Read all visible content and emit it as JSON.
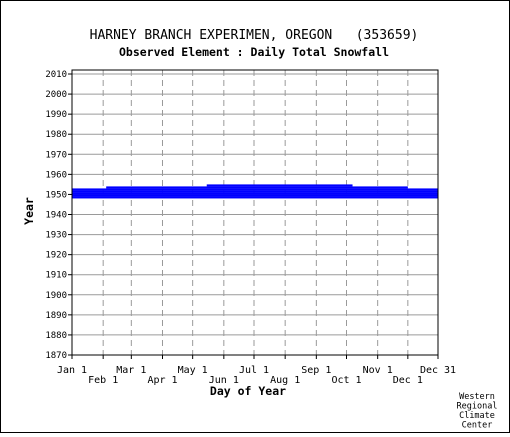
{
  "chart_data": {
    "type": "heatmap",
    "title": "HARNEY BRANCH EXPERIMEN, OREGON   (353659)",
    "subtitle": "Observed Element : Daily Total Snowfall",
    "xlabel": "Day of Year",
    "ylabel": "Year",
    "ylim": [
      1870,
      2012
    ],
    "xlim": [
      1,
      365
    ],
    "y_ticks": [
      "1870",
      "1880",
      "1890",
      "1900",
      "1910",
      "1920",
      "1930",
      "1940",
      "1950",
      "1960",
      "1970",
      "1980",
      "1990",
      "2000",
      "2010"
    ],
    "x_ticks_top_row": [
      {
        "label": "Jan 1",
        "day": 1
      },
      {
        "label": "Mar 1",
        "day": 60
      },
      {
        "label": "May 1",
        "day": 121
      },
      {
        "label": "Jul 1",
        "day": 182
      },
      {
        "label": "Sep 1",
        "day": 244
      },
      {
        "label": "Nov 1",
        "day": 305
      },
      {
        "label": "Dec 31",
        "day": 365
      }
    ],
    "x_ticks_bottom_row": [
      {
        "label": "Feb 1",
        "day": 32
      },
      {
        "label": "Apr 1",
        "day": 91
      },
      {
        "label": "Jun 1",
        "day": 152
      },
      {
        "label": "Aug 1",
        "day": 213
      },
      {
        "label": "Oct 1",
        "day": 274
      },
      {
        "label": "Dec 1",
        "day": 335
      }
    ],
    "grid": true,
    "color": "#0000ff",
    "records": [
      {
        "year": 1948,
        "start_day": 1,
        "end_day": 365
      },
      {
        "year": 1949,
        "start_day": 1,
        "end_day": 365
      },
      {
        "year": 1950,
        "start_day": 1,
        "end_day": 365
      },
      {
        "year": 1951,
        "start_day": 1,
        "end_day": 365
      },
      {
        "year": 1952,
        "start_day": 1,
        "end_day": 365
      },
      {
        "year": 1953,
        "start_day": 35,
        "end_day": 335
      },
      {
        "year": 1954,
        "start_day": 135,
        "end_day": 280
      }
    ]
  },
  "credit": [
    "Western",
    "Regional",
    "Climate",
    "Center"
  ]
}
